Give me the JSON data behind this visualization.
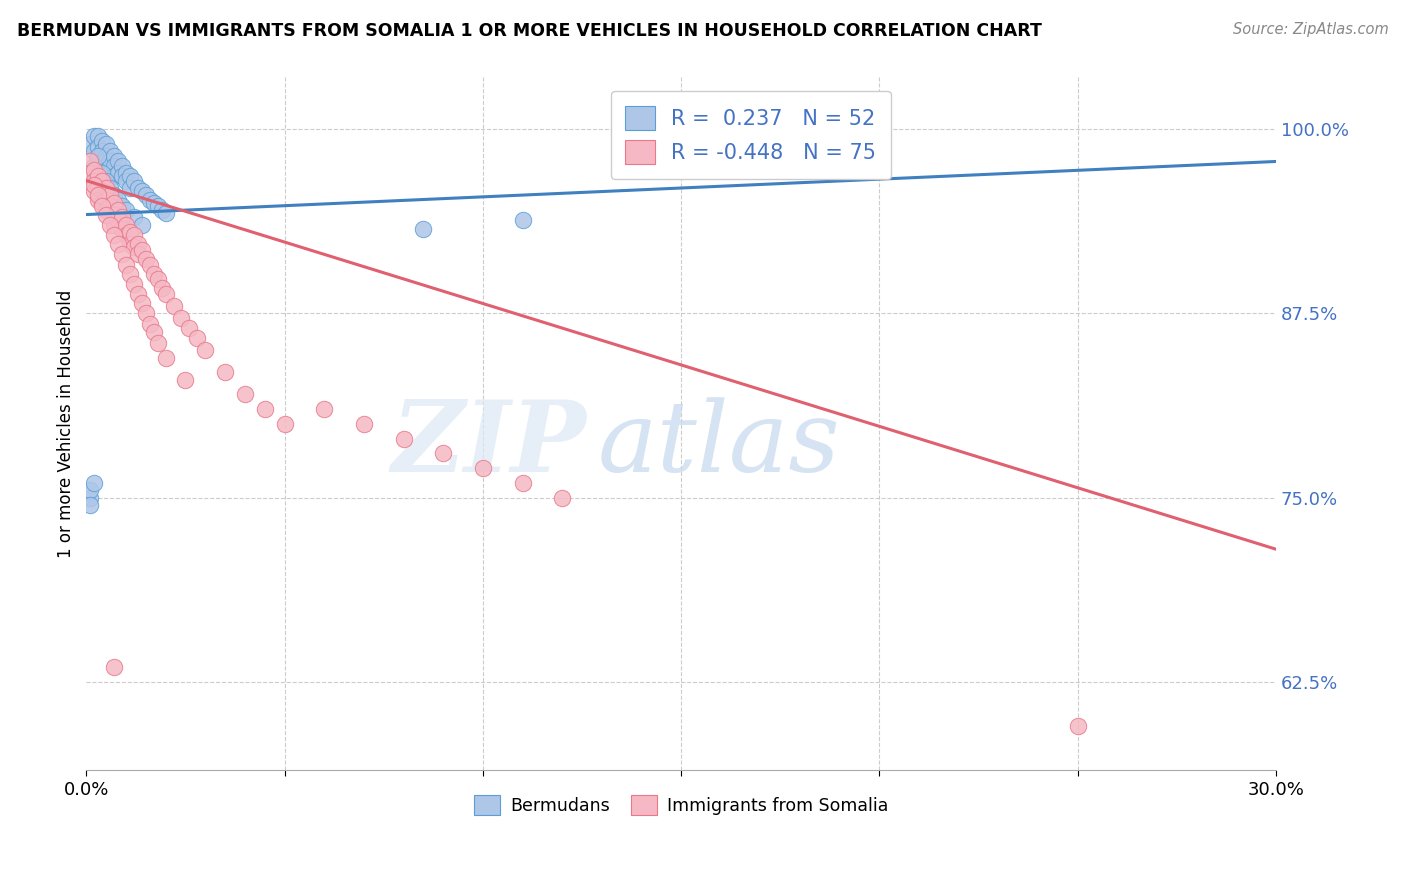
{
  "title": "BERMUDAN VS IMMIGRANTS FROM SOMALIA 1 OR MORE VEHICLES IN HOUSEHOLD CORRELATION CHART",
  "source": "Source: ZipAtlas.com",
  "ylabel": "1 or more Vehicles in Household",
  "ytick_labels": [
    "100.0%",
    "87.5%",
    "75.0%",
    "62.5%"
  ],
  "ytick_values": [
    1.0,
    0.875,
    0.75,
    0.625
  ],
  "xlim": [
    0.0,
    0.3
  ],
  "ylim": [
    0.565,
    1.035
  ],
  "legend_blue_r": "0.237",
  "legend_blue_n": "52",
  "legend_pink_r": "-0.448",
  "legend_pink_n": "75",
  "blue_fill": "#aec6e8",
  "pink_fill": "#f5b8c4",
  "blue_edge": "#5a9fd4",
  "pink_edge": "#e8788a",
  "blue_line_color": "#4080c0",
  "pink_line_color": "#e06070",
  "watermark_zip": "ZIP",
  "watermark_atlas": "atlas",
  "blue_scatter_x": [
    0.001,
    0.002,
    0.002,
    0.003,
    0.003,
    0.003,
    0.004,
    0.004,
    0.004,
    0.005,
    0.005,
    0.005,
    0.006,
    0.006,
    0.006,
    0.007,
    0.007,
    0.007,
    0.008,
    0.008,
    0.009,
    0.009,
    0.01,
    0.01,
    0.011,
    0.011,
    0.012,
    0.013,
    0.014,
    0.015,
    0.016,
    0.017,
    0.018,
    0.019,
    0.02,
    0.002,
    0.003,
    0.004,
    0.005,
    0.006,
    0.007,
    0.008,
    0.009,
    0.01,
    0.012,
    0.014,
    0.085,
    0.11,
    0.001,
    0.001,
    0.001,
    0.002
  ],
  "blue_scatter_y": [
    0.99,
    0.995,
    0.985,
    0.995,
    0.988,
    0.98,
    0.992,
    0.985,
    0.978,
    0.99,
    0.982,
    0.975,
    0.985,
    0.978,
    0.97,
    0.982,
    0.975,
    0.968,
    0.978,
    0.97,
    0.975,
    0.968,
    0.97,
    0.965,
    0.968,
    0.96,
    0.965,
    0.96,
    0.958,
    0.955,
    0.952,
    0.95,
    0.948,
    0.945,
    0.943,
    0.975,
    0.982,
    0.97,
    0.965,
    0.96,
    0.955,
    0.952,
    0.948,
    0.945,
    0.94,
    0.935,
    0.932,
    0.938,
    0.75,
    0.755,
    0.745,
    0.76
  ],
  "pink_scatter_x": [
    0.001,
    0.001,
    0.002,
    0.002,
    0.002,
    0.003,
    0.003,
    0.003,
    0.004,
    0.004,
    0.004,
    0.005,
    0.005,
    0.005,
    0.006,
    0.006,
    0.007,
    0.007,
    0.007,
    0.008,
    0.008,
    0.009,
    0.009,
    0.01,
    0.01,
    0.011,
    0.011,
    0.012,
    0.012,
    0.013,
    0.013,
    0.014,
    0.015,
    0.016,
    0.017,
    0.018,
    0.019,
    0.02,
    0.022,
    0.024,
    0.026,
    0.028,
    0.03,
    0.035,
    0.04,
    0.045,
    0.05,
    0.06,
    0.07,
    0.08,
    0.09,
    0.1,
    0.11,
    0.12,
    0.002,
    0.003,
    0.004,
    0.005,
    0.006,
    0.007,
    0.008,
    0.009,
    0.01,
    0.011,
    0.012,
    0.013,
    0.014,
    0.015,
    0.016,
    0.017,
    0.018,
    0.02,
    0.025,
    0.25,
    0.007
  ],
  "pink_scatter_y": [
    0.978,
    0.97,
    0.972,
    0.965,
    0.958,
    0.968,
    0.96,
    0.952,
    0.965,
    0.958,
    0.95,
    0.96,
    0.952,
    0.945,
    0.955,
    0.948,
    0.95,
    0.942,
    0.935,
    0.945,
    0.938,
    0.94,
    0.932,
    0.935,
    0.928,
    0.93,
    0.922,
    0.928,
    0.92,
    0.922,
    0.915,
    0.918,
    0.912,
    0.908,
    0.902,
    0.898,
    0.892,
    0.888,
    0.88,
    0.872,
    0.865,
    0.858,
    0.85,
    0.835,
    0.82,
    0.81,
    0.8,
    0.81,
    0.8,
    0.79,
    0.78,
    0.77,
    0.76,
    0.75,
    0.962,
    0.955,
    0.948,
    0.942,
    0.935,
    0.928,
    0.922,
    0.915,
    0.908,
    0.902,
    0.895,
    0.888,
    0.882,
    0.875,
    0.868,
    0.862,
    0.855,
    0.845,
    0.83,
    0.595,
    0.635
  ],
  "blue_line_x": [
    0.0,
    0.3
  ],
  "blue_line_y": [
    0.942,
    0.978
  ],
  "pink_line_x": [
    0.0,
    0.3
  ],
  "pink_line_y": [
    0.965,
    0.715
  ]
}
